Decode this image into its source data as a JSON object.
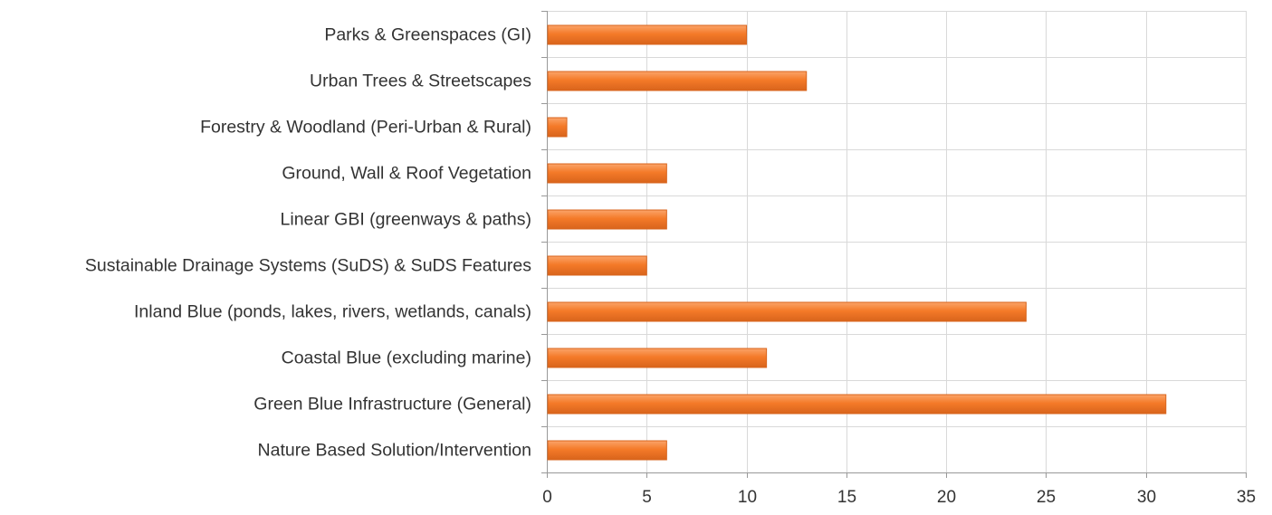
{
  "chart_data": {
    "type": "bar",
    "orientation": "horizontal",
    "categories": [
      "Parks & Greenspaces (GI)",
      "Urban Trees & Streetscapes",
      "Forestry & Woodland (Peri-Urban & Rural)",
      "Ground, Wall & Roof Vegetation",
      "Linear GBI (greenways & paths)",
      "Sustainable Drainage Systems (SuDS) & SuDS Features",
      "Inland Blue (ponds, lakes, rivers, wetlands, canals)",
      "Coastal Blue (excluding marine)",
      "Green Blue Infrastructure (General)",
      "Nature Based Solution/Intervention"
    ],
    "values": [
      10,
      13,
      1,
      6,
      6,
      5,
      24,
      11,
      31,
      6
    ],
    "xlim": [
      0,
      35
    ],
    "xticks": [
      "0",
      "5",
      "10",
      "15",
      "20",
      "25",
      "30",
      "35"
    ],
    "grid": true,
    "bar_color": "#f47a28",
    "bar_highlight": "#fba469",
    "bar_border": "#d8641c",
    "grid_color": "#d9d9d9",
    "axis_color": "#999999"
  }
}
